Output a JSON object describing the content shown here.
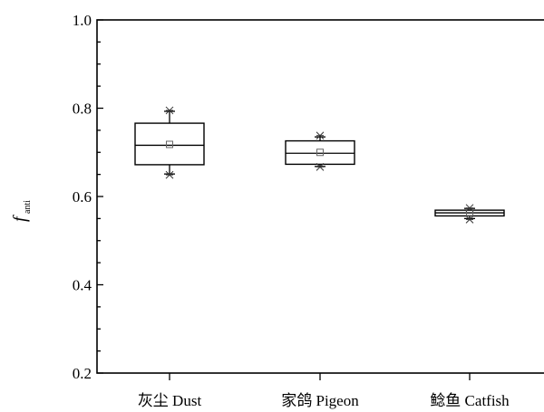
{
  "chart_data": {
    "type": "box",
    "ylabel": {
      "symbol": "f",
      "subscript": "anti"
    },
    "ylim": [
      0.2,
      1.0
    ],
    "yticks": [
      "0.2",
      "0.4",
      "0.6",
      "0.8",
      "1.0"
    ],
    "yticks_values": [
      0.2,
      0.4,
      0.6,
      0.8,
      1.0
    ],
    "y_minor_step": 0.05,
    "categories": [
      "灰尘 Dust",
      "家鸽 Pigeon",
      "鲶鱼 Catfish"
    ],
    "boxes": [
      {
        "whisker_low": 0.651,
        "q1": 0.672,
        "median": 0.716,
        "q3": 0.766,
        "whisker_high": 0.793,
        "mean": 0.718,
        "outliers": [
          0.649,
          0.795
        ]
      },
      {
        "whisker_low": 0.668,
        "q1": 0.673,
        "median": 0.698,
        "q3": 0.726,
        "whisker_high": 0.735,
        "mean": 0.7,
        "outliers": [
          0.667,
          0.738
        ]
      },
      {
        "whisker_low": 0.55,
        "q1": 0.556,
        "median": 0.563,
        "q3": 0.569,
        "whisker_high": 0.573,
        "mean": 0.564,
        "outliers": [
          0.548,
          0.574
        ]
      }
    ],
    "legend": "none",
    "grid": false
  }
}
